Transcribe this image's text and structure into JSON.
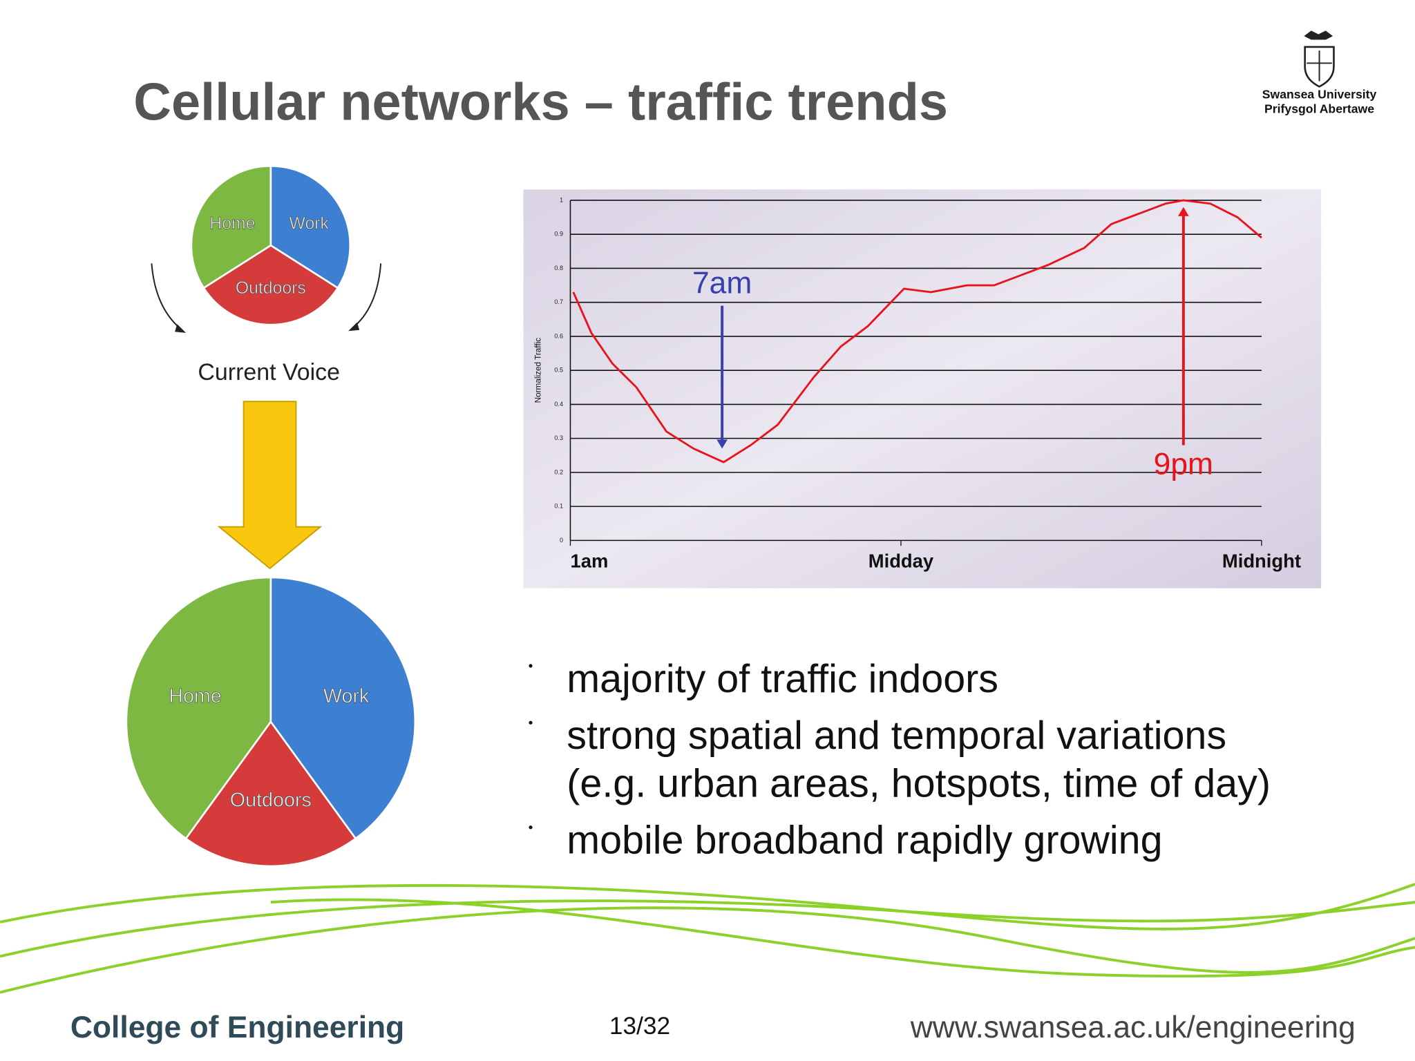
{
  "title": "Cellular networks – traffic trends",
  "logo": {
    "line1": "Swansea University",
    "line2": "Prifysgol Abertawe"
  },
  "diagram_label": "Current Voice",
  "chart_data": [
    {
      "type": "pie",
      "categories": [
        "Work",
        "Outdoors",
        "Home"
      ],
      "values": [
        34,
        32,
        34
      ],
      "colors": [
        "#3d7fd1",
        "#d63b3b",
        "#7db843"
      ]
    },
    {
      "type": "pie",
      "categories": [
        "Work",
        "Outdoors",
        "Home"
      ],
      "values": [
        40,
        20,
        40
      ],
      "colors": [
        "#3d7fd1",
        "#d63b3b",
        "#7db843"
      ]
    },
    {
      "type": "line",
      "y_label": "Normalized Traffic",
      "x": [
        1.1,
        1.7,
        2.4,
        3.2,
        4.2,
        5.1,
        6.1,
        7.0,
        7.9,
        9.1,
        10.0,
        10.9,
        12.1,
        13.0,
        14.2,
        15.1,
        16.0,
        16.9,
        18.1,
        19.0,
        19.9,
        20.8,
        21.4,
        22.3,
        23.2,
        24
      ],
      "values": [
        0.73,
        0.61,
        0.52,
        0.45,
        0.32,
        0.27,
        0.23,
        0.28,
        0.34,
        0.48,
        0.57,
        0.63,
        0.74,
        0.73,
        0.75,
        0.75,
        0.78,
        0.81,
        0.86,
        0.93,
        0.96,
        0.99,
        1.0,
        0.99,
        0.95,
        0.89
      ],
      "color": "#e8141c",
      "xlim": [
        1,
        24
      ],
      "xticks": [
        {
          "value": 1,
          "label": "1am"
        },
        {
          "value": 12,
          "label": "Midday"
        },
        {
          "value": 24,
          "label": "Midnight"
        }
      ],
      "ylim": [
        0,
        1
      ],
      "yticks": [
        0,
        0.1,
        0.2,
        0.3,
        0.4,
        0.5,
        0.6,
        0.7,
        0.8,
        0.9,
        1
      ],
      "grid": true,
      "annotations": [
        {
          "text": "7am",
          "x": 6.05,
          "y_start": 0.69,
          "y_end": 0.27,
          "color": "#3a3fb0"
        },
        {
          "text": "9pm",
          "x": 21.4,
          "y_start": 0.28,
          "y_end": 0.98,
          "color": "#e8141c"
        }
      ]
    }
  ],
  "bullets": [
    [
      "majority of traffic indoors"
    ],
    [
      "strong spatial and temporal variations",
      "(e.g. urban areas, hotspots, time of day)"
    ],
    [
      "mobile broadband rapidly growing"
    ]
  ],
  "footer": {
    "college": "College of Engineering",
    "page": "13/32",
    "url": "www.swansea.ac.uk/engineering"
  }
}
